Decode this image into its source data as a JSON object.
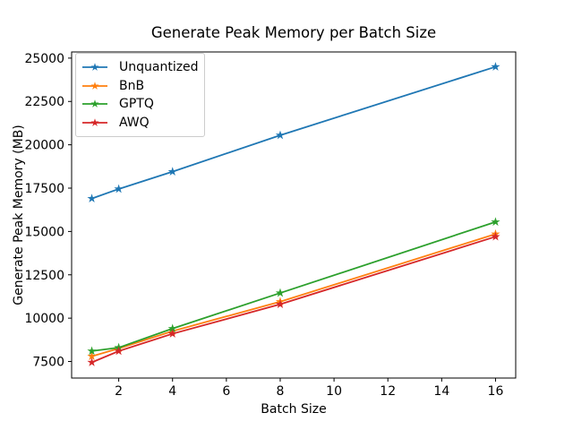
{
  "chart_data": {
    "type": "line",
    "title": "Generate Peak Memory per Batch Size",
    "xlabel": "Batch Size",
    "ylabel": "Generate Peak Memory (MB)",
    "x": [
      1,
      2,
      4,
      8,
      16
    ],
    "series": [
      {
        "name": "Unquantized",
        "color": "#1f77b4",
        "values": [
          16900,
          17450,
          18450,
          20550,
          24500
        ]
      },
      {
        "name": "BnB",
        "color": "#ff7f0e",
        "values": [
          7800,
          8250,
          9250,
          10950,
          14850
        ]
      },
      {
        "name": "GPTQ",
        "color": "#2ca02c",
        "values": [
          8100,
          8300,
          9400,
          11450,
          15550
        ]
      },
      {
        "name": "AWQ",
        "color": "#d62728",
        "values": [
          7450,
          8100,
          9100,
          10800,
          14700
        ]
      }
    ],
    "marker": "star",
    "xticks": [
      2,
      4,
      6,
      8,
      10,
      12,
      14,
      16
    ],
    "yticks": [
      7500,
      10000,
      12500,
      15000,
      17500,
      20000,
      22500,
      25000
    ],
    "xlim": [
      0.25,
      16.75
    ],
    "ylim": [
      6545,
      25355
    ],
    "grid": false,
    "legend_position": "upper-left",
    "axis_color": "#000000",
    "background_color": "#ffffff"
  }
}
